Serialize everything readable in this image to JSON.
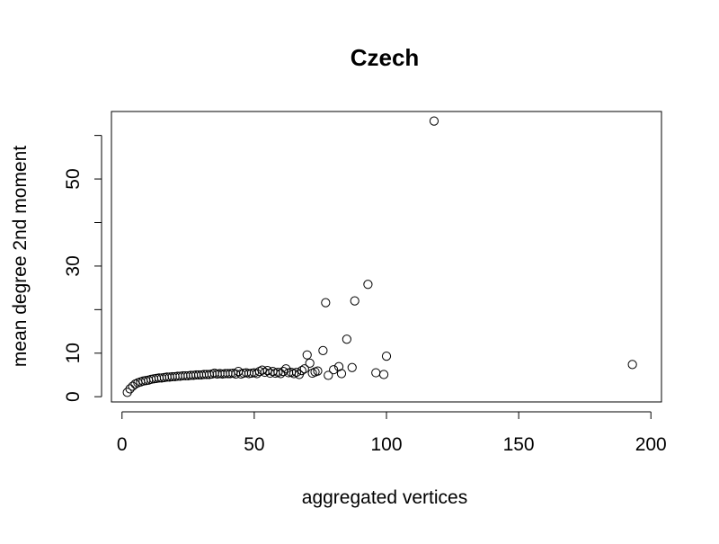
{
  "chart_data": {
    "type": "scatter",
    "title": "Czech",
    "xlabel": "aggregated vertices",
    "ylabel": "mean degree 2nd moment",
    "xlim": [
      -4,
      204
    ],
    "ylim": [
      -1.2,
      65.5
    ],
    "x_ticks": [
      0,
      50,
      100,
      150,
      200
    ],
    "y_ticks": [
      0,
      10,
      20,
      30,
      40,
      50,
      60
    ],
    "y_tick_labels": [
      "0",
      "10",
      "",
      "30",
      "",
      "50",
      ""
    ],
    "x": [
      2,
      3,
      4,
      5,
      6,
      7,
      8,
      9,
      10,
      11,
      12,
      13,
      14,
      15,
      16,
      17,
      18,
      19,
      20,
      21,
      22,
      23,
      24,
      25,
      26,
      27,
      28,
      29,
      30,
      31,
      32,
      33,
      34,
      35,
      36,
      37,
      38,
      39,
      40,
      41,
      42,
      43,
      44,
      45,
      46,
      47,
      48,
      49,
      50,
      51,
      52,
      53,
      54,
      55,
      56,
      57,
      58,
      59,
      60,
      61,
      62,
      63,
      64,
      65,
      66,
      67,
      68,
      69,
      70,
      71,
      72,
      73,
      74,
      76,
      77,
      78,
      80,
      82,
      83,
      85,
      87,
      88,
      93,
      96,
      99,
      100,
      118,
      193
    ],
    "y": [
      1.0,
      1.8,
      2.4,
      2.9,
      3.2,
      3.4,
      3.6,
      3.7,
      3.8,
      4.0,
      4.1,
      4.2,
      4.3,
      4.3,
      4.4,
      4.5,
      4.5,
      4.6,
      4.6,
      4.7,
      4.7,
      4.8,
      4.8,
      4.8,
      4.9,
      4.9,
      5.0,
      5.0,
      5.0,
      5.1,
      5.1,
      5.1,
      5.2,
      5.4,
      5.2,
      5.3,
      5.2,
      5.3,
      5.3,
      5.3,
      5.4,
      5.2,
      5.8,
      5.2,
      5.4,
      5.5,
      5.3,
      5.4,
      5.5,
      5.3,
      5.8,
      6.1,
      5.6,
      6.0,
      5.4,
      5.8,
      5.4,
      5.6,
      5.3,
      5.8,
      6.4,
      5.5,
      5.6,
      5.3,
      5.6,
      5.1,
      6.0,
      6.4,
      9.6,
      7.7,
      5.4,
      5.7,
      5.9,
      10.6,
      21.6,
      4.9,
      6.2,
      6.9,
      5.3,
      13.2,
      6.7,
      22.0,
      25.8,
      5.5,
      5.1,
      9.3,
      63.3,
      7.4
    ]
  }
}
